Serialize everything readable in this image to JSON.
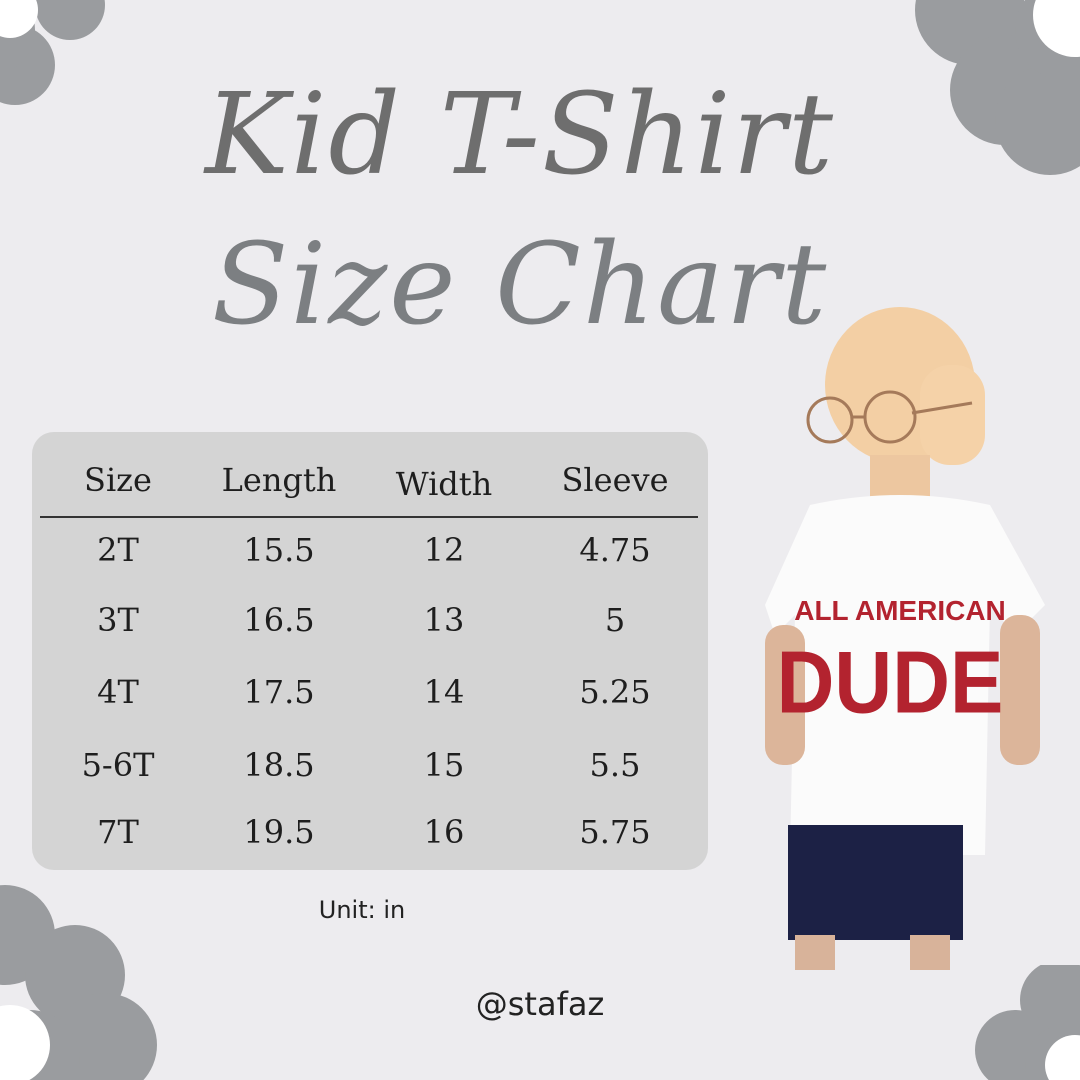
{
  "title": {
    "line1": "Kid T-Shirt",
    "line2": "Size Chart"
  },
  "colors": {
    "background": "#edecef",
    "flower": "#9a9c9f",
    "title": "#6e6e6e",
    "table_bg": "#d4d4d4",
    "shirt_print": "#b3232f",
    "shorts": "#1c2145"
  },
  "table": {
    "headers": [
      "Size",
      "Length",
      "Width",
      "Sleeve"
    ],
    "rows": [
      [
        "2T",
        "15.5",
        "12",
        "4.75"
      ],
      [
        "3T",
        "16.5",
        "13",
        "5"
      ],
      [
        "4T",
        "17.5",
        "14",
        "5.25"
      ],
      [
        "5-6T",
        "18.5",
        "15",
        "5.5"
      ],
      [
        "7T",
        "19.5",
        "16",
        "5.75"
      ]
    ]
  },
  "chart_data": {
    "type": "table",
    "columns": [
      "Size",
      "Length",
      "Width",
      "Sleeve"
    ],
    "rows": [
      [
        "2T",
        15.5,
        12,
        4.75
      ],
      [
        "3T",
        16.5,
        13,
        5
      ],
      [
        "4T",
        17.5,
        14,
        5.25
      ],
      [
        "5-6T",
        18.5,
        15,
        5.5
      ],
      [
        "7T",
        19.5,
        16,
        5.75
      ]
    ],
    "unit": "in"
  },
  "unit_label": "Unit: in",
  "handle": "@stafaz",
  "photo": {
    "shirt_line1": "ALL AMERICAN",
    "shirt_line2": "DUDE"
  }
}
